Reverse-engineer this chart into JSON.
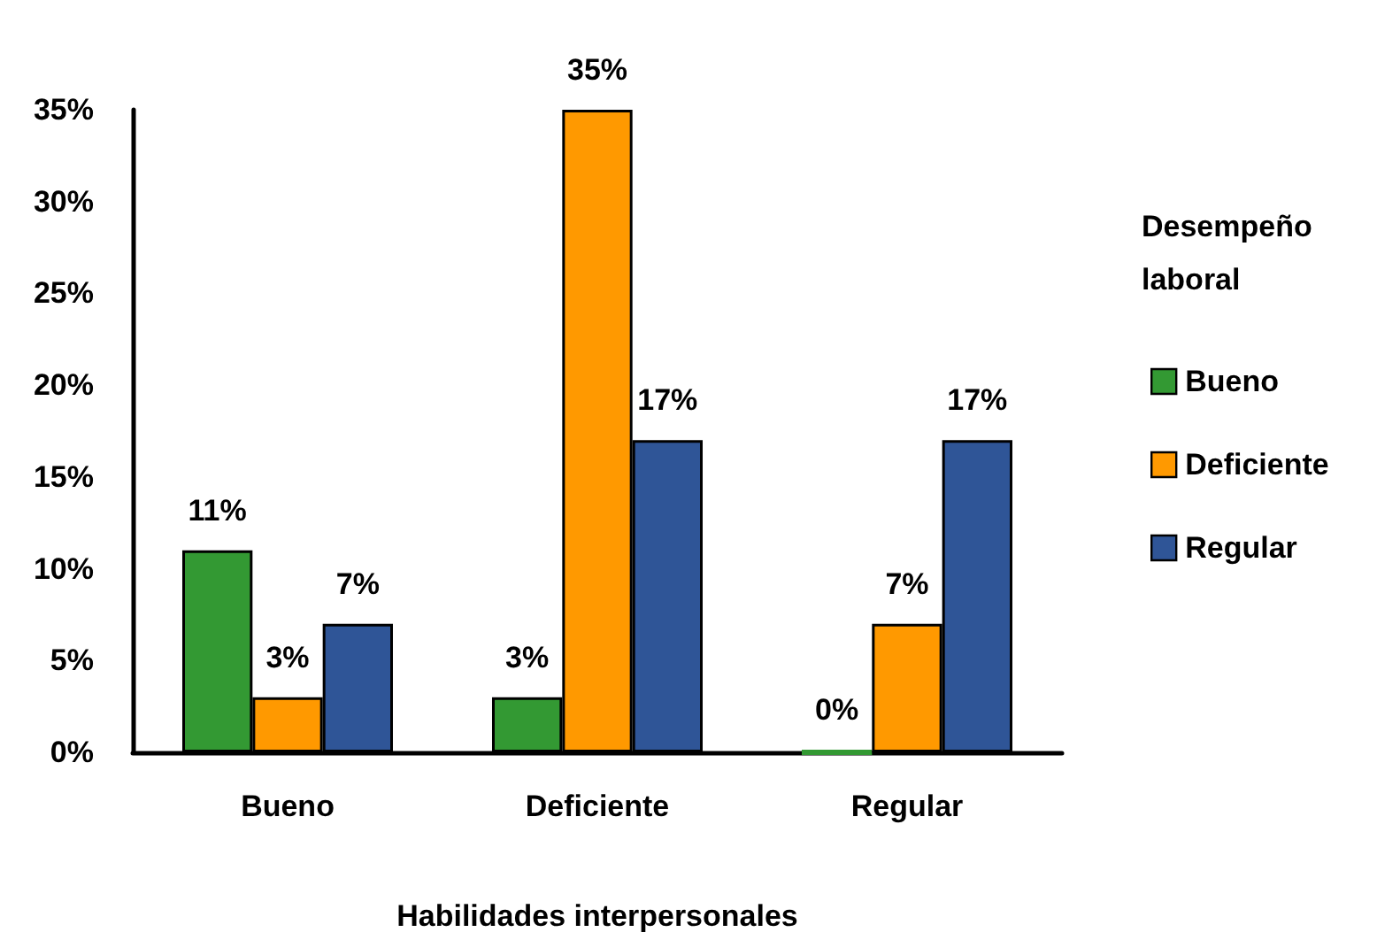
{
  "chart_data": {
    "type": "bar",
    "categories": [
      "Bueno",
      "Deficiente",
      "Regular"
    ],
    "series": [
      {
        "name": "Bueno",
        "color": "#339933",
        "values": [
          11,
          3,
          0
        ],
        "value_labels": [
          "11%",
          "3%",
          "0%"
        ]
      },
      {
        "name": "Deficiente",
        "color": "#ff9900",
        "values": [
          3,
          35,
          7
        ],
        "value_labels": [
          "3%",
          "35%",
          "7%"
        ]
      },
      {
        "name": "Regular",
        "color": "#2f5597",
        "values": [
          7,
          17,
          17
        ],
        "value_labels": [
          "7%",
          "17%",
          "17%"
        ]
      }
    ],
    "xlabel": "Habilidades interpersonales",
    "legend_title": "Desempeño laboral",
    "legend": "right",
    "ylim": [
      0,
      35
    ],
    "yticks": [
      {
        "value": 0,
        "label": "0%"
      },
      {
        "value": 5,
        "label": "5%"
      },
      {
        "value": 10,
        "label": "10%"
      },
      {
        "value": 15,
        "label": "15%"
      },
      {
        "value": 20,
        "label": "20%"
      },
      {
        "value": 25,
        "label": "25%"
      },
      {
        "value": 30,
        "label": "30%"
      },
      {
        "value": 35,
        "label": "35%"
      }
    ],
    "grid": false
  }
}
